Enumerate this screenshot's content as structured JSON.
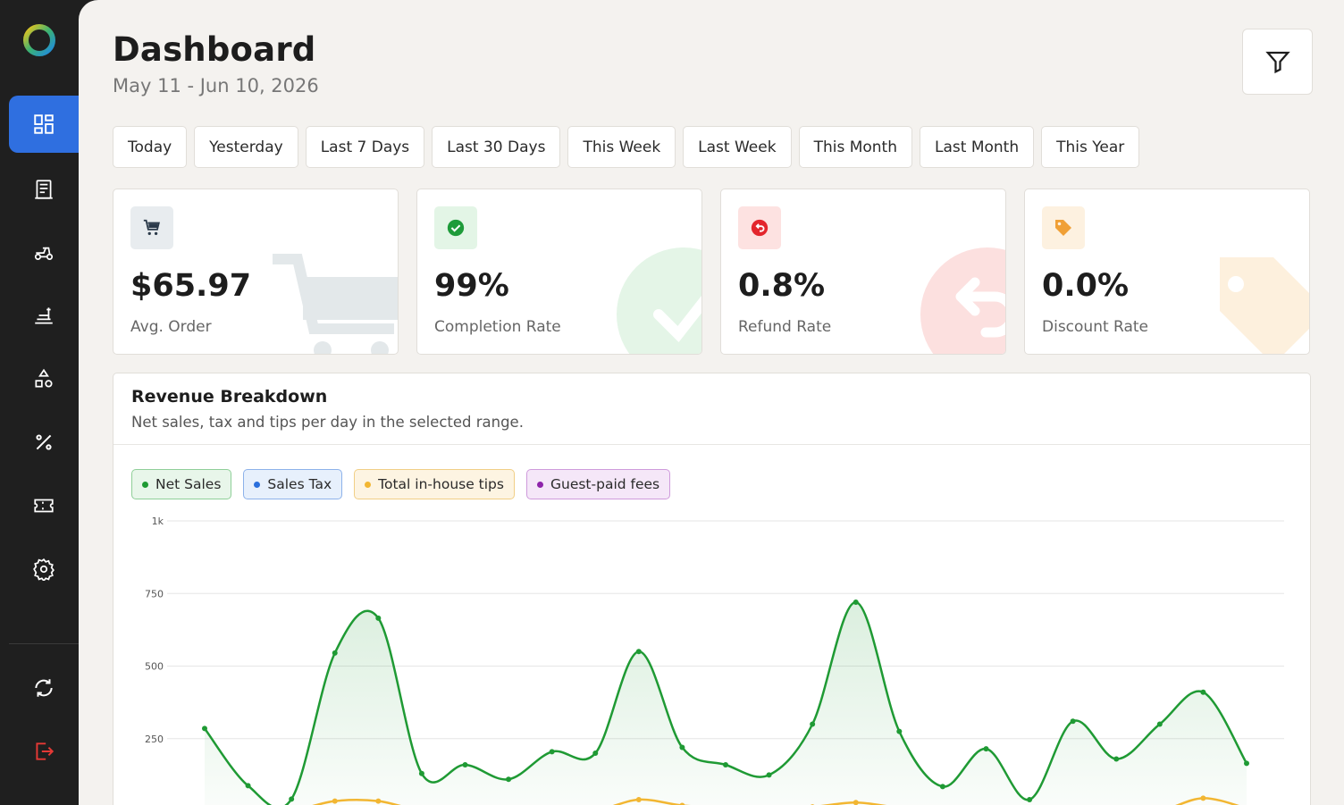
{
  "header": {
    "title": "Dashboard",
    "date_range": "May 11 - Jun 10, 2026"
  },
  "sidebar": {
    "items": [
      {
        "icon": "dashboard-icon",
        "active": true
      },
      {
        "icon": "receipt-icon",
        "active": false
      },
      {
        "icon": "delivery-scooter-icon",
        "active": false
      },
      {
        "icon": "food-tray-icon",
        "active": false
      },
      {
        "icon": "shapes-icon",
        "active": false
      },
      {
        "icon": "percent-icon",
        "active": false
      },
      {
        "icon": "ticket-icon",
        "active": false
      },
      {
        "icon": "gear-icon",
        "active": false
      }
    ],
    "bottom": [
      {
        "icon": "sync-icon"
      },
      {
        "icon": "logout-icon"
      }
    ]
  },
  "ranges": [
    "Today",
    "Yesterday",
    "Last 7 Days",
    "Last 30 Days",
    "This Week",
    "Last Week",
    "This Month",
    "Last Month",
    "This Year"
  ],
  "kpis": [
    {
      "value": "$65.97",
      "label": "Avg. Order",
      "icon": "cart-icon",
      "color": "#2b3a4a",
      "bg": "#e8ecef"
    },
    {
      "value": "99%",
      "label": "Completion Rate",
      "icon": "check-circle-icon",
      "color": "#1e9b3a",
      "bg": "#e3f5e6"
    },
    {
      "value": "0.8%",
      "label": "Refund Rate",
      "icon": "refund-icon",
      "color": "#e3262d",
      "bg": "#fde2e1"
    },
    {
      "value": "0.0%",
      "label": "Discount Rate",
      "icon": "tag-icon",
      "color": "#f0a036",
      "bg": "#fdf1e0"
    }
  ],
  "revenue": {
    "title": "Revenue Breakdown",
    "subtitle": "Net sales, tax and tips per day in the selected range."
  },
  "chart_data": {
    "type": "area",
    "y_ticks": [
      "1k",
      "750",
      "500",
      "250"
    ],
    "ylim": [
      0,
      1000
    ],
    "legend": [
      {
        "name": "Net Sales",
        "color": "#1f9a34",
        "bg": "#e8f6ea",
        "border": "#8fcf98"
      },
      {
        "name": "Sales Tax",
        "color": "#2a6fdc",
        "bg": "#e7f0fc",
        "border": "#8db2ea"
      },
      {
        "name": "Total in-house tips",
        "color": "#f2b632",
        "bg": "#fdf4e2",
        "border": "#f1cf86"
      },
      {
        "name": "Guest-paid fees",
        "color": "#8e24aa",
        "bg": "#f5e7f8",
        "border": "#cf9bdc"
      }
    ],
    "series": [
      {
        "name": "Net Sales",
        "values": [
          285,
          88,
          42,
          545,
          665,
          130,
          160,
          110,
          205,
          200,
          550,
          220,
          160,
          125,
          300,
          720,
          275,
          85,
          215,
          40,
          310,
          180,
          300,
          410,
          165
        ]
      },
      {
        "name": "Total in-house tips",
        "values": [
          2,
          2,
          2,
          35,
          35,
          2,
          2,
          2,
          2,
          2,
          40,
          20,
          12,
          10,
          15,
          30,
          12,
          2,
          2,
          2,
          2,
          2,
          2,
          45,
          10
        ]
      },
      {
        "name": "Guest-paid fees",
        "values": [
          0,
          0,
          0,
          2,
          6,
          0,
          0,
          0,
          0,
          0,
          0,
          0,
          0,
          0,
          0,
          0,
          0,
          0,
          0,
          0,
          0,
          0,
          0,
          0,
          0
        ]
      }
    ]
  }
}
